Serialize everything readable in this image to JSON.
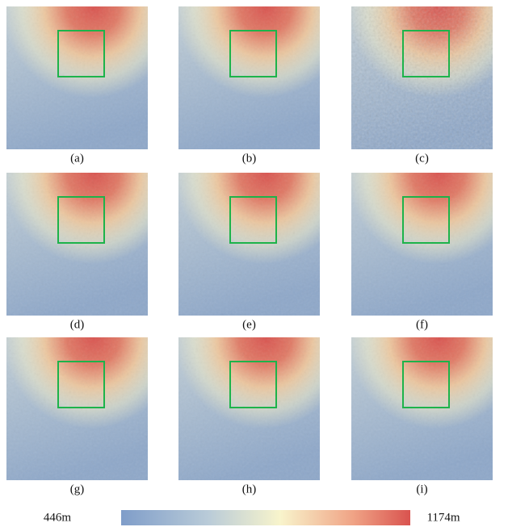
{
  "panels": [
    {
      "label": "(a)"
    },
    {
      "label": "(b)"
    },
    {
      "label": "(c)"
    },
    {
      "label": "(d)"
    },
    {
      "label": "(e)"
    },
    {
      "label": "(f)"
    },
    {
      "label": "(g)"
    },
    {
      "label": "(h)"
    },
    {
      "label": "(i)"
    }
  ],
  "colorbar": {
    "min_label": "446m",
    "max_label": "1174m"
  }
}
